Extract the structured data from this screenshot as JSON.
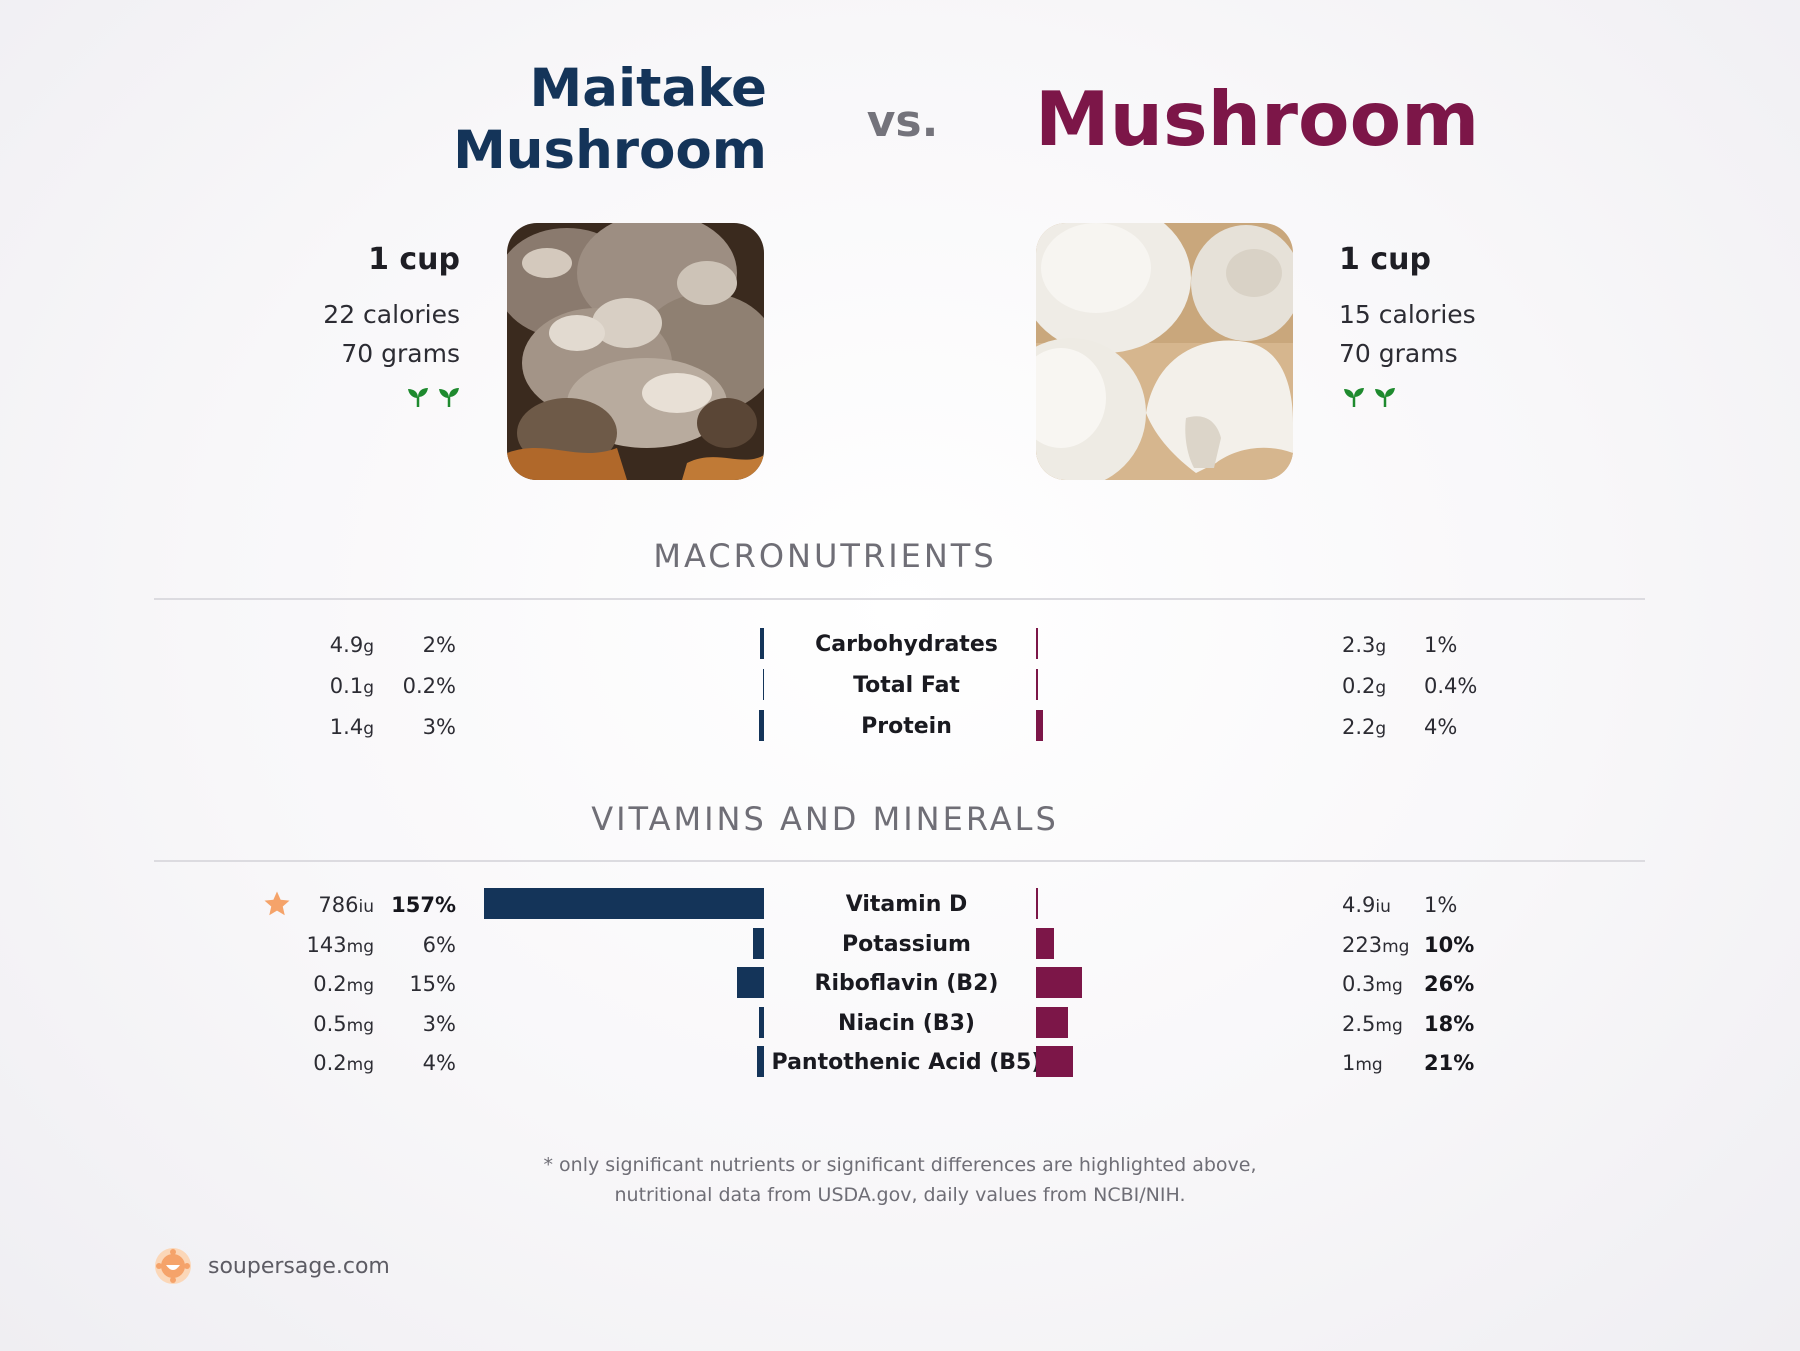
{
  "header": {
    "left_title_line1": "Maitake",
    "left_title_line2": "Mushroom",
    "vs_text": "vs.",
    "right_title": "Mushroom"
  },
  "left_food": {
    "serving": "1 cup",
    "calories": "22 calories",
    "grams": "70 grams",
    "icon": "sprout-icon"
  },
  "right_food": {
    "serving": "1 cup",
    "calories": "15 calories",
    "grams": "70 grams",
    "icon": "sprout-icon"
  },
  "colors": {
    "left": "#143459",
    "right": "#7c1648",
    "star": "#f5a36a"
  },
  "chart_data": [
    {
      "type": "bar",
      "title": "MACRONUTRIENTS",
      "categories": [
        "Carbohydrates",
        "Total Fat",
        "Protein"
      ],
      "series": [
        {
          "name": "Maitake Mushroom",
          "amounts": [
            "4.9",
            "0.1",
            "1.4"
          ],
          "units": [
            "g",
            "g",
            "g"
          ],
          "values": [
            2,
            0.2,
            3
          ],
          "labels": [
            "2%",
            "0.2%",
            "3%"
          ],
          "bold": [
            false,
            false,
            false
          ]
        },
        {
          "name": "Mushroom",
          "amounts": [
            "2.3",
            "0.2",
            "2.2"
          ],
          "units": [
            "g",
            "g",
            "g"
          ],
          "values": [
            1,
            0.4,
            4
          ],
          "labels": [
            "1%",
            "0.4%",
            "4%"
          ],
          "bold": [
            false,
            false,
            false
          ]
        }
      ],
      "star_left": [
        false,
        false,
        false
      ]
    },
    {
      "type": "bar",
      "title": "VITAMINS AND MINERALS",
      "categories": [
        "Vitamin D",
        "Potassium",
        "Riboflavin (B2)",
        "Niacin (B3)",
        "Pantothenic Acid (B5)"
      ],
      "series": [
        {
          "name": "Maitake Mushroom",
          "amounts": [
            "786",
            "143",
            "0.2",
            "0.5",
            "0.2"
          ],
          "units": [
            "iu",
            "mg",
            "mg",
            "mg",
            "mg"
          ],
          "values": [
            157,
            6,
            15,
            3,
            4
          ],
          "labels": [
            "157%",
            "6%",
            "15%",
            "3%",
            "4%"
          ],
          "bold": [
            true,
            false,
            false,
            false,
            false
          ]
        },
        {
          "name": "Mushroom",
          "amounts": [
            "4.9",
            "223",
            "0.3",
            "2.5",
            "1"
          ],
          "units": [
            "iu",
            "mg",
            "mg",
            "mg",
            "mg"
          ],
          "values": [
            1,
            10,
            26,
            18,
            21
          ],
          "labels": [
            "1%",
            "10%",
            "26%",
            "18%",
            "21%"
          ],
          "bold": [
            false,
            true,
            true,
            true,
            true
          ]
        }
      ],
      "star_left": [
        true,
        false,
        false,
        false,
        false
      ]
    }
  ],
  "footnote": {
    "line1": "* only significant nutrients or significant differences are highlighted above,",
    "line2": "nutritional data from USDA.gov, daily values from NCBI/NIH."
  },
  "brand": {
    "name": "soupersage.com",
    "icon": "soupersage-logo-icon"
  }
}
